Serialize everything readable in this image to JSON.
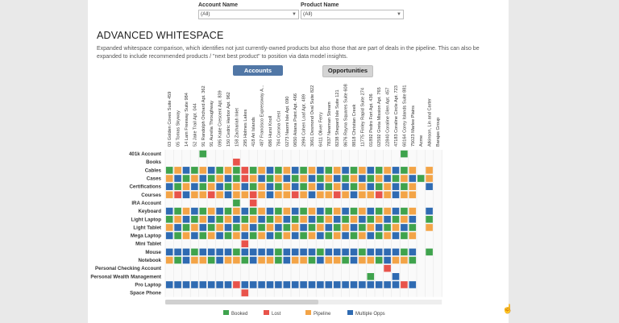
{
  "filters": {
    "account_name": {
      "label": "Account Name",
      "value": "(All)"
    },
    "product_name": {
      "label": "Product Name",
      "value": "(All)"
    }
  },
  "title": "ADVANCED WHITESPACE",
  "description": "Expanded whitespace comparison, which identifies not just currently-owned products but also those that are part of deals in the pipeline. This can also be expanded to include recommended products / \"next best product\" to position via data model insights.",
  "buttons": {
    "accounts": "Accounts",
    "opportunities": "Opportunities"
  },
  "colors": {
    "Booked": "#3fa34d",
    "Lost": "#e8534b",
    "Pipeline": "#f3a447",
    "Multiple Opps": "#2f6bb2",
    "empty": "#f1f1f1"
  },
  "chart_data": {
    "type": "heatmap",
    "columns": [
      "03 Golden Coves Suite 459",
      "05 Tomas Skyway",
      "14 Lam Freeway Suite 984",
      "52 Jake Trail Apt. 044",
      "91 Randolph Orchard Apt. 362",
      "91 Aurelia Throughway",
      "095 Katie Crescent Apt. 839",
      "150 Cedric Harbor Apt. 962",
      "158 Zachariah Inlet",
      "295 Holmes Lakes",
      "418 Ari Islands",
      "487 Francisco Expressway A...",
      "686 Hurst Knoll",
      "784 Corona Crest",
      "0273 Naomi Isle Apt. 090",
      "0650 Aitana Point Apt. 466",
      "2994 Cohen Loaf Apt. 489",
      "3061 Desmond Oval Suite 822",
      "6411 Oliver Ferry",
      "7837 Newman Stream",
      "8238 Shepard Isle Suite 121",
      "8676 Rayna Squares Suite 608",
      "8818 Christian Creek",
      "11775 Finley Rapid Suite 274",
      "01892 Pedro Fort Apt. 436",
      "02592 Greta Mission Apt. 765",
      "22840 Coraline Glen Apt. 457",
      "47183 Coraline Circle Apt. 723",
      "60164 Corey Islands Suite 881",
      "75023 Marlee Plains",
      "Acme",
      "Atkinson, Lin and Carter",
      "Barajas Group"
    ],
    "rows": [
      "401k Account",
      "Books",
      "Cables",
      "Cases",
      "Certifications",
      "Courses",
      "IRA Account",
      "Keyboard",
      "Light Laptop",
      "Light Tablet",
      "Mega Laptop",
      "Mini Tablet",
      "Mouse",
      "Notebook",
      "Personal Checking Account",
      "Personal Wealth Management",
      "Pro Laptop",
      "Space Phone"
    ],
    "legend": [
      "Booked",
      "Lost",
      "Pipeline",
      "Multiple Opps"
    ],
    "status_codes": {
      "G": "Booked",
      "R": "Lost",
      "O": "Pipeline",
      "B": "Multiple Opps",
      ".": "none"
    },
    "cells": [
      "....G.......................G....",
      "........R........................",
      "GOBGOBGOGRGOBGOBGOBGOBGOBGOBGO.O.",
      "OBGOBGOBGROBGOBGOBGOBGOBGOBGOBGO.",
      "BGOBGOBGOBGOBGOBGOBGOBGOBGOBGO.B.",
      "ORBOOROBOOROBOOROBOOROBOOROBOO...",
      "........G.R......................",
      "BGOBGOBGOBGOBGOBGOBGOBGOBGOBGO.B.",
      "GOBGOBGOBGOBGOBGOBGOBGOBGOBGOB.G.",
      "OBGOBGOBGOBGOBGOBGOBGOBGOBGOBG.O.",
      "BGOBGOBGOBGOBGOBGOBGOBGOBGOBGO...",
      ".........R.......................",
      "BBBGBBBBGBBBBGBBBBGBBBBGBBBBGB.G.",
      "OGBOOGBOOGBOOGBOOGBOOGBOOGBOOG...",
      "..........................R......",
      "........................G..B.....",
      "BBBBBBBBRBBBBBBBBBBBBBBBBBBBRB...",
      ".........R......................."
    ]
  }
}
